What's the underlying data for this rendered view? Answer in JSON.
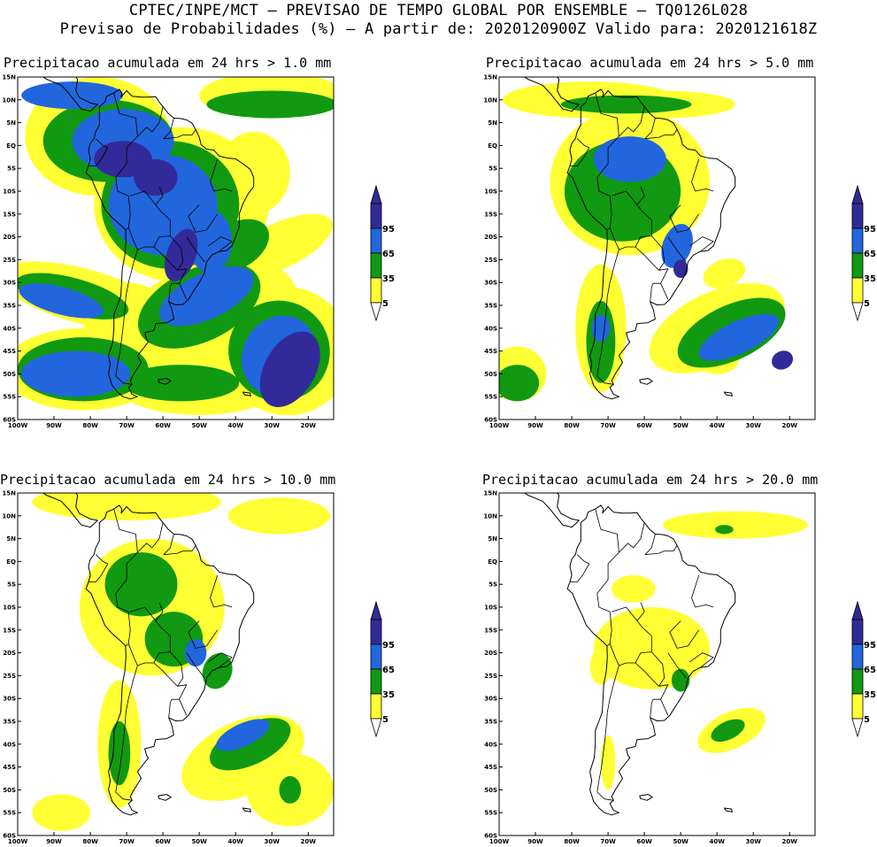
{
  "header": {
    "line1": "CPTEC/INPE/MCT – PREVISAO DE TEMPO GLOBAL POR ENSEMBLE – TQ0126L028",
    "line2": "Previsao de Probabilidades (%) –  A partir de: 2020120900Z  Valido para: 2020121618Z"
  },
  "colors": {
    "p5": "#ffff33",
    "p35": "#119911",
    "p65": "#2266dd",
    "p95": "#332a99",
    "outline": "#000000",
    "background": "#ffffff"
  },
  "axes": {
    "lat_ticks": [
      "15N",
      "10N",
      "5N",
      "EQ",
      "5S",
      "10S",
      "15S",
      "20S",
      "25S",
      "30S",
      "35S",
      "40S",
      "45S",
      "50S",
      "55S",
      "60S"
    ],
    "lon_ticks": [
      "100W",
      "90W",
      "80W",
      "70W",
      "60W",
      "50W",
      "40W",
      "30W",
      "20W"
    ]
  },
  "colorbar": {
    "labels": [
      "95",
      "65",
      "35",
      "5"
    ]
  },
  "panels": [
    {
      "id": "p1",
      "title": "Precipitacao acumulada em 24 hrs > 1.0 mm",
      "threshold_mm": 1.0
    },
    {
      "id": "p5",
      "title": "Precipitacao acumulada em 24 hrs > 5.0 mm",
      "threshold_mm": 5.0
    },
    {
      "id": "p10",
      "title": "Precipitacao acumulada em 24 hrs > 10.0 mm",
      "threshold_mm": 10.0
    },
    {
      "id": "p20",
      "title": "Precipitacao acumulada em 24 hrs > 20.0 mm",
      "threshold_mm": 20.0
    }
  ]
}
